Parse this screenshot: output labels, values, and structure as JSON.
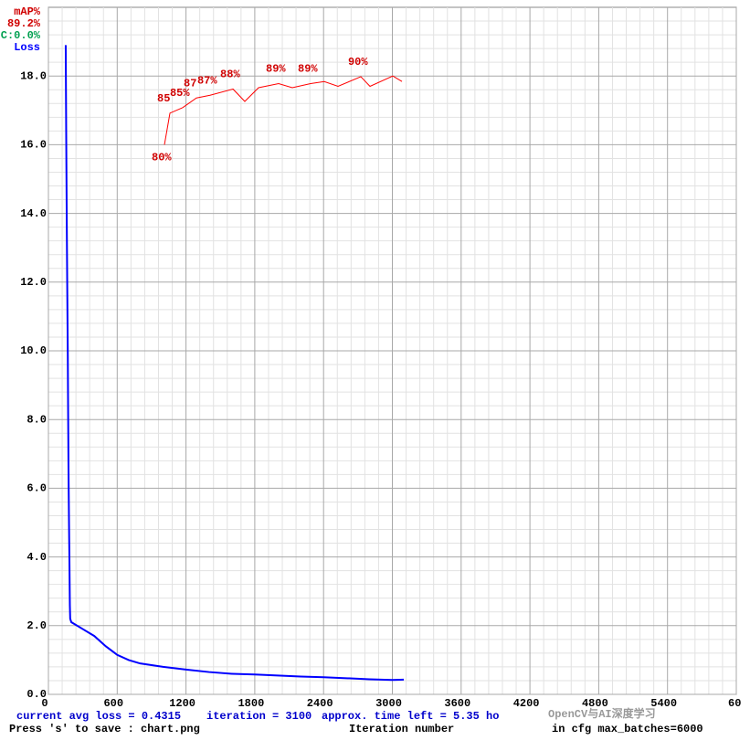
{
  "chart_data": {
    "type": "line",
    "legend": [
      "mAP%",
      "89.2%",
      "C:0.0%",
      "Loss"
    ],
    "footer": [
      "current avg loss = 0.4315",
      "iteration = 3100",
      "approx. time left = 5.35 ho",
      "Press 's' to save : chart.png",
      "Iteration number",
      "in cfg max_batches=6000"
    ],
    "watermark": "OpenCV与AI深度学习",
    "xlim": [
      0,
      6000
    ],
    "ylim": [
      0,
      20
    ],
    "y2lim": [
      0,
      100
    ],
    "xticks": [
      0,
      600,
      1200,
      1800,
      2400,
      3000,
      3600,
      4200,
      4800,
      5400,
      {
        "value": 6000,
        "label": "60"
      }
    ],
    "yticks": [
      {
        "value": 0,
        "label": "0.0"
      },
      {
        "value": 2,
        "label": "2.0"
      },
      {
        "value": 4,
        "label": "4.0"
      },
      {
        "value": 6,
        "label": "6.0"
      },
      {
        "value": 8,
        "label": "8.0"
      },
      {
        "value": 10,
        "label": "10.0"
      },
      {
        "value": 12,
        "label": "12.0"
      },
      {
        "value": 14,
        "label": "14.0"
      },
      {
        "value": 16,
        "label": "16.0"
      },
      {
        "value": 18,
        "label": "18.0"
      }
    ],
    "grid": true,
    "series": [
      {
        "name": "Loss",
        "color": "#0000ff",
        "x": [
          151,
          153,
          155,
          157,
          159,
          161,
          163,
          165,
          167,
          169,
          171,
          173,
          175,
          177,
          179,
          181,
          183,
          185,
          187,
          190,
          200,
          300,
          400,
          500,
          600,
          700,
          800,
          900,
          1000,
          1200,
          1400,
          1600,
          1800,
          2000,
          2200,
          2400,
          2600,
          2800,
          3000,
          3100
        ],
        "values": [
          18.9,
          17.6,
          16.4,
          15.35,
          14.3,
          13.3,
          12.4,
          11.55,
          10.7,
          9.9,
          8.7,
          7.7,
          6.7,
          5.9,
          5.2,
          4.55,
          4.0,
          3.3,
          2.6,
          2.2,
          2.1,
          1.9,
          1.7,
          1.4,
          1.15,
          1.0,
          0.9,
          0.85,
          0.8,
          0.72,
          0.65,
          0.6,
          0.58,
          0.55,
          0.52,
          0.5,
          0.47,
          0.44,
          0.42,
          0.43
        ]
      },
      {
        "name": "mAP%",
        "color": "#ff0000",
        "axis": "y2",
        "x": [
          1012,
          1060,
          1171,
          1291,
          1410,
          1610,
          1713,
          1833,
          2008,
          2127,
          2287,
          2406,
          2526,
          2725,
          2805,
          3004,
          3084
        ],
        "values": [
          80,
          84.6,
          85.4,
          86.8,
          87.2,
          88.1,
          86.3,
          88.3,
          88.9,
          88.3,
          88.9,
          89.2,
          88.5,
          89.9,
          88.5,
          90.0,
          89.2
        ],
        "value_labels": [
          "80%",
          "85",
          "85%",
          "87",
          "87%",
          "88%",
          null,
          null,
          "89%",
          null,
          "89%",
          null,
          null,
          "90%",
          null,
          null,
          null
        ]
      }
    ]
  }
}
